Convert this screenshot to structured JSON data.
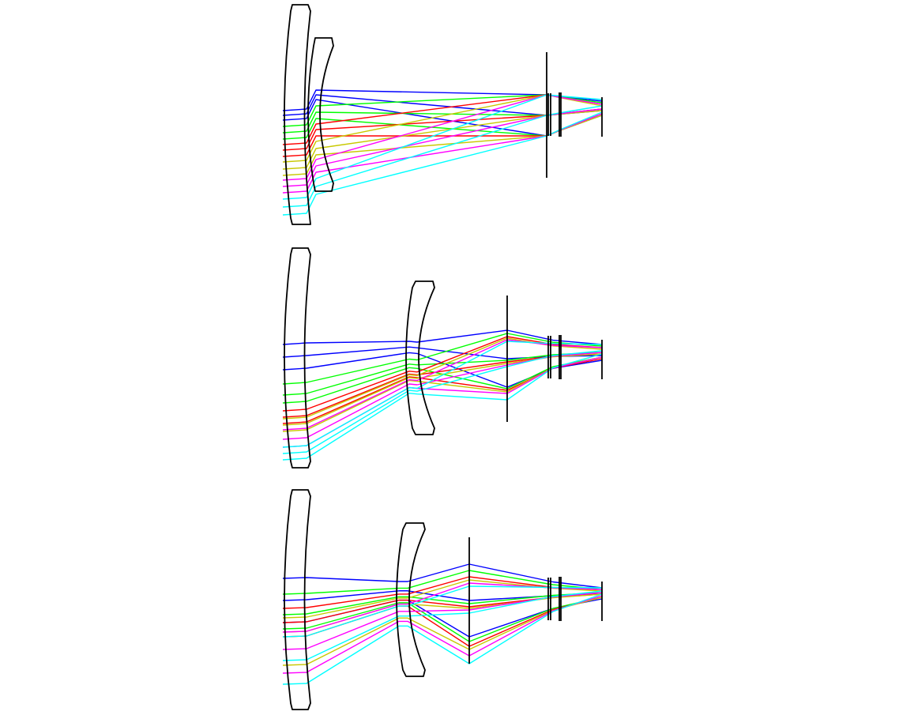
{
  "diagram": {
    "kind": "optical-ray-trace",
    "configurations": [
      {
        "id": "config-1"
      },
      {
        "id": "config-2"
      },
      {
        "id": "config-3"
      }
    ],
    "ray_colors": [
      "#0000ff",
      "#00ff00",
      "#ff0000",
      "#c8c800",
      "#ff00ff",
      "#00ffff"
    ],
    "lens_color": "#000000"
  }
}
